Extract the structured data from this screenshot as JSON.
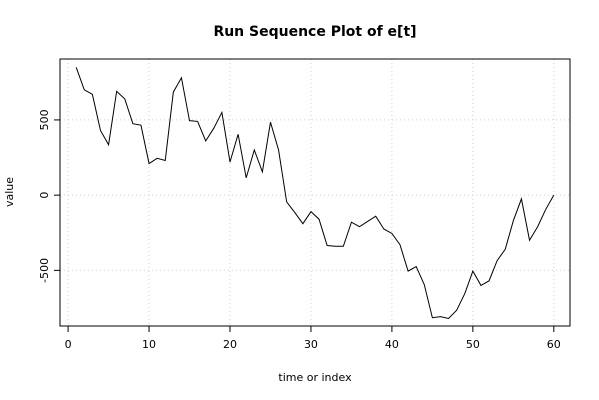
{
  "chart_data": {
    "type": "line",
    "title": "Run Sequence Plot of e[t]",
    "xlabel": "time or index",
    "ylabel": "value",
    "xlim": [
      -1,
      62
    ],
    "ylim": [
      -870,
      905
    ],
    "xticks": [
      0,
      10,
      20,
      30,
      40,
      50,
      60
    ],
    "yticks": [
      -500,
      0,
      500
    ],
    "grid": true,
    "series": [
      {
        "x": [
          1,
          2,
          3,
          4,
          5,
          6,
          7,
          8,
          9,
          10,
          11,
          12,
          13,
          14,
          15,
          16,
          17,
          18,
          19,
          20,
          21,
          22,
          23,
          24,
          25,
          26,
          27,
          28,
          29,
          30,
          31,
          32,
          33,
          34,
          35,
          36,
          37,
          38,
          39,
          40,
          41,
          42,
          43,
          44,
          45,
          46,
          47,
          48,
          49,
          50,
          51,
          52,
          53,
          54,
          55,
          56,
          57,
          58,
          59,
          60
        ],
        "values": [
          850,
          700,
          670,
          430,
          335,
          690,
          640,
          475,
          465,
          210,
          245,
          230,
          685,
          780,
          495,
          490,
          360,
          445,
          550,
          220,
          405,
          115,
          300,
          155,
          485,
          300,
          -45,
          -115,
          -190,
          -110,
          -160,
          -335,
          -340,
          -340,
          -180,
          -210,
          -175,
          -140,
          -225,
          -255,
          -330,
          -505,
          -475,
          -595,
          -815,
          -808,
          -820,
          -765,
          -655,
          -505,
          -600,
          -570,
          -435,
          -360,
          -170,
          -25,
          -300,
          -210,
          -95,
          0
        ]
      }
    ]
  }
}
